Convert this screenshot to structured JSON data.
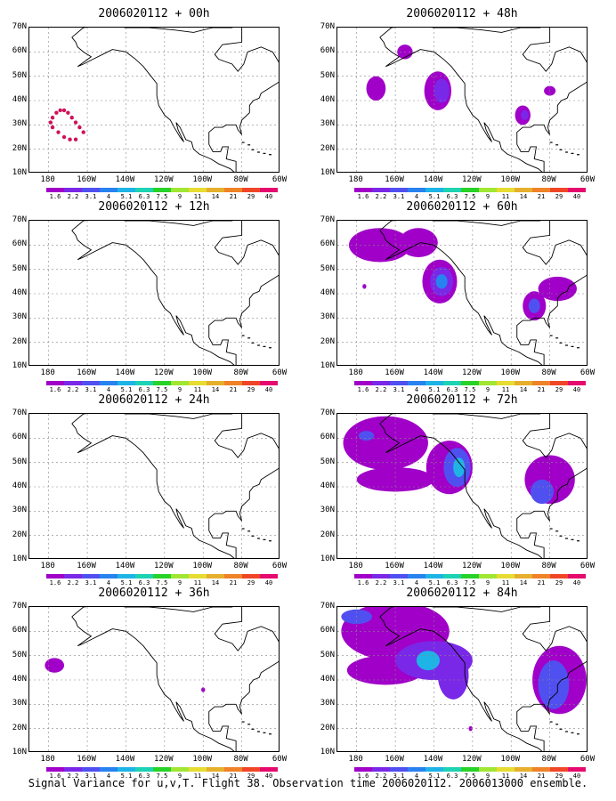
{
  "caption": "Signal Variance for u,v,T. Flight 38. Observation time 2006020112. 2006013000 ensemble.",
  "lat_ticks": [
    "70N",
    "60N",
    "50N",
    "40N",
    "30N",
    "20N",
    "10N"
  ],
  "lon_ticks": [
    "180",
    "160W",
    "140W",
    "120W",
    "100W",
    "80W",
    "60W"
  ],
  "colorbar": {
    "labels": [
      "1.6",
      "2.2",
      "3.1",
      "4",
      "5.1",
      "6.3",
      "7.5",
      "9",
      "11",
      "14",
      "21",
      "29",
      "40"
    ],
    "colors": [
      "#a000c8",
      "#7a28e8",
      "#5050f0",
      "#2882f0",
      "#1eb4e6",
      "#1ed2b4",
      "#28d228",
      "#a0e632",
      "#e6dc32",
      "#e6af2d",
      "#f08228",
      "#f04628",
      "#e60a6e"
    ]
  },
  "panels": [
    {
      "title": "2006020112 + 00h",
      "blobs": [],
      "dots": [
        [
          -178,
          33
        ],
        [
          -176,
          35
        ],
        [
          -174,
          36
        ],
        [
          -172,
          36
        ],
        [
          -170,
          35
        ],
        [
          -168,
          33
        ],
        [
          -166,
          31
        ],
        [
          -164,
          29
        ],
        [
          -162,
          27
        ],
        [
          -179,
          31
        ],
        [
          -178,
          29
        ],
        [
          -175,
          27
        ],
        [
          -172,
          25
        ],
        [
          -169,
          24
        ],
        [
          -166,
          24
        ]
      ]
    },
    {
      "title": "2006020112 + 12h",
      "blobs": [],
      "dots": []
    },
    {
      "title": "2006020112 + 24h",
      "blobs": [],
      "dots": []
    },
    {
      "title": "2006020112 + 36h",
      "blobs": [
        {
          "lon": -177,
          "lat": 46,
          "rx": 5,
          "ry": 3,
          "c": 0
        },
        {
          "lon": -100,
          "lat": 36,
          "rx": 1,
          "ry": 1,
          "c": 0
        }
      ],
      "dots": []
    },
    {
      "title": "2006020112 + 48h",
      "blobs": [
        {
          "lon": -170,
          "lat": 45,
          "rx": 5,
          "ry": 5,
          "c": 0
        },
        {
          "lon": -155,
          "lat": 60,
          "rx": 4,
          "ry": 3,
          "c": 0
        },
        {
          "lon": -138,
          "lat": 44,
          "rx": 7,
          "ry": 8,
          "c": 0
        },
        {
          "lon": -136,
          "lat": 44,
          "rx": 4,
          "ry": 5,
          "c": 1
        },
        {
          "lon": -94,
          "lat": 34,
          "rx": 4,
          "ry": 4,
          "c": 0
        },
        {
          "lon": -93,
          "lat": 34,
          "rx": 2,
          "ry": 2,
          "c": 1
        },
        {
          "lon": -80,
          "lat": 44,
          "rx": 3,
          "ry": 2,
          "c": 0
        }
      ],
      "dots": []
    },
    {
      "title": "2006020112 + 60h",
      "blobs": [
        {
          "lon": -168,
          "lat": 60,
          "rx": 16,
          "ry": 7,
          "c": 0
        },
        {
          "lon": -148,
          "lat": 61,
          "rx": 10,
          "ry": 6,
          "c": 0
        },
        {
          "lon": -137,
          "lat": 45,
          "rx": 9,
          "ry": 9,
          "c": 0
        },
        {
          "lon": -136,
          "lat": 45,
          "rx": 6,
          "ry": 6,
          "c": 1
        },
        {
          "lon": -136,
          "lat": 45,
          "rx": 3,
          "ry": 3,
          "c": 3
        },
        {
          "lon": -176,
          "lat": 43,
          "rx": 1,
          "ry": 1,
          "c": 0
        },
        {
          "lon": -88,
          "lat": 35,
          "rx": 6,
          "ry": 6,
          "c": 0
        },
        {
          "lon": -76,
          "lat": 42,
          "rx": 10,
          "ry": 5,
          "c": 0
        },
        {
          "lon": -88,
          "lat": 35,
          "rx": 3,
          "ry": 3,
          "c": 2
        }
      ],
      "dots": []
    },
    {
      "title": "2006020112 + 72h",
      "blobs": [
        {
          "lon": -165,
          "lat": 58,
          "rx": 22,
          "ry": 11,
          "c": 0
        },
        {
          "lon": -160,
          "lat": 43,
          "rx": 20,
          "ry": 5,
          "c": 0
        },
        {
          "lon": -132,
          "lat": 48,
          "rx": 12,
          "ry": 11,
          "c": 0
        },
        {
          "lon": -128,
          "lat": 48,
          "rx": 7,
          "ry": 8,
          "c": 2
        },
        {
          "lon": -127,
          "lat": 48,
          "rx": 3,
          "ry": 4,
          "c": 4
        },
        {
          "lon": -175,
          "lat": 61,
          "rx": 4,
          "ry": 2,
          "c": 2
        },
        {
          "lon": -80,
          "lat": 43,
          "rx": 13,
          "ry": 10,
          "c": 0
        },
        {
          "lon": -84,
          "lat": 38,
          "rx": 6,
          "ry": 5,
          "c": 2
        }
      ],
      "dots": []
    },
    {
      "title": "2006020112 + 84h",
      "blobs": [
        {
          "lon": -160,
          "lat": 60,
          "rx": 28,
          "ry": 12,
          "c": 0
        },
        {
          "lon": -165,
          "lat": 44,
          "rx": 20,
          "ry": 6,
          "c": 0
        },
        {
          "lon": -140,
          "lat": 48,
          "rx": 20,
          "ry": 8,
          "c": 1
        },
        {
          "lon": -143,
          "lat": 48,
          "rx": 6,
          "ry": 4,
          "c": 4
        },
        {
          "lon": -130,
          "lat": 42,
          "rx": 8,
          "ry": 10,
          "c": 1
        },
        {
          "lon": -180,
          "lat": 66,
          "rx": 8,
          "ry": 3,
          "c": 2
        },
        {
          "lon": -75,
          "lat": 40,
          "rx": 14,
          "ry": 14,
          "c": 0
        },
        {
          "lon": -78,
          "lat": 38,
          "rx": 8,
          "ry": 10,
          "c": 2
        },
        {
          "lon": -121,
          "lat": 20,
          "rx": 1,
          "ry": 1,
          "c": 0
        }
      ],
      "dots": []
    }
  ]
}
